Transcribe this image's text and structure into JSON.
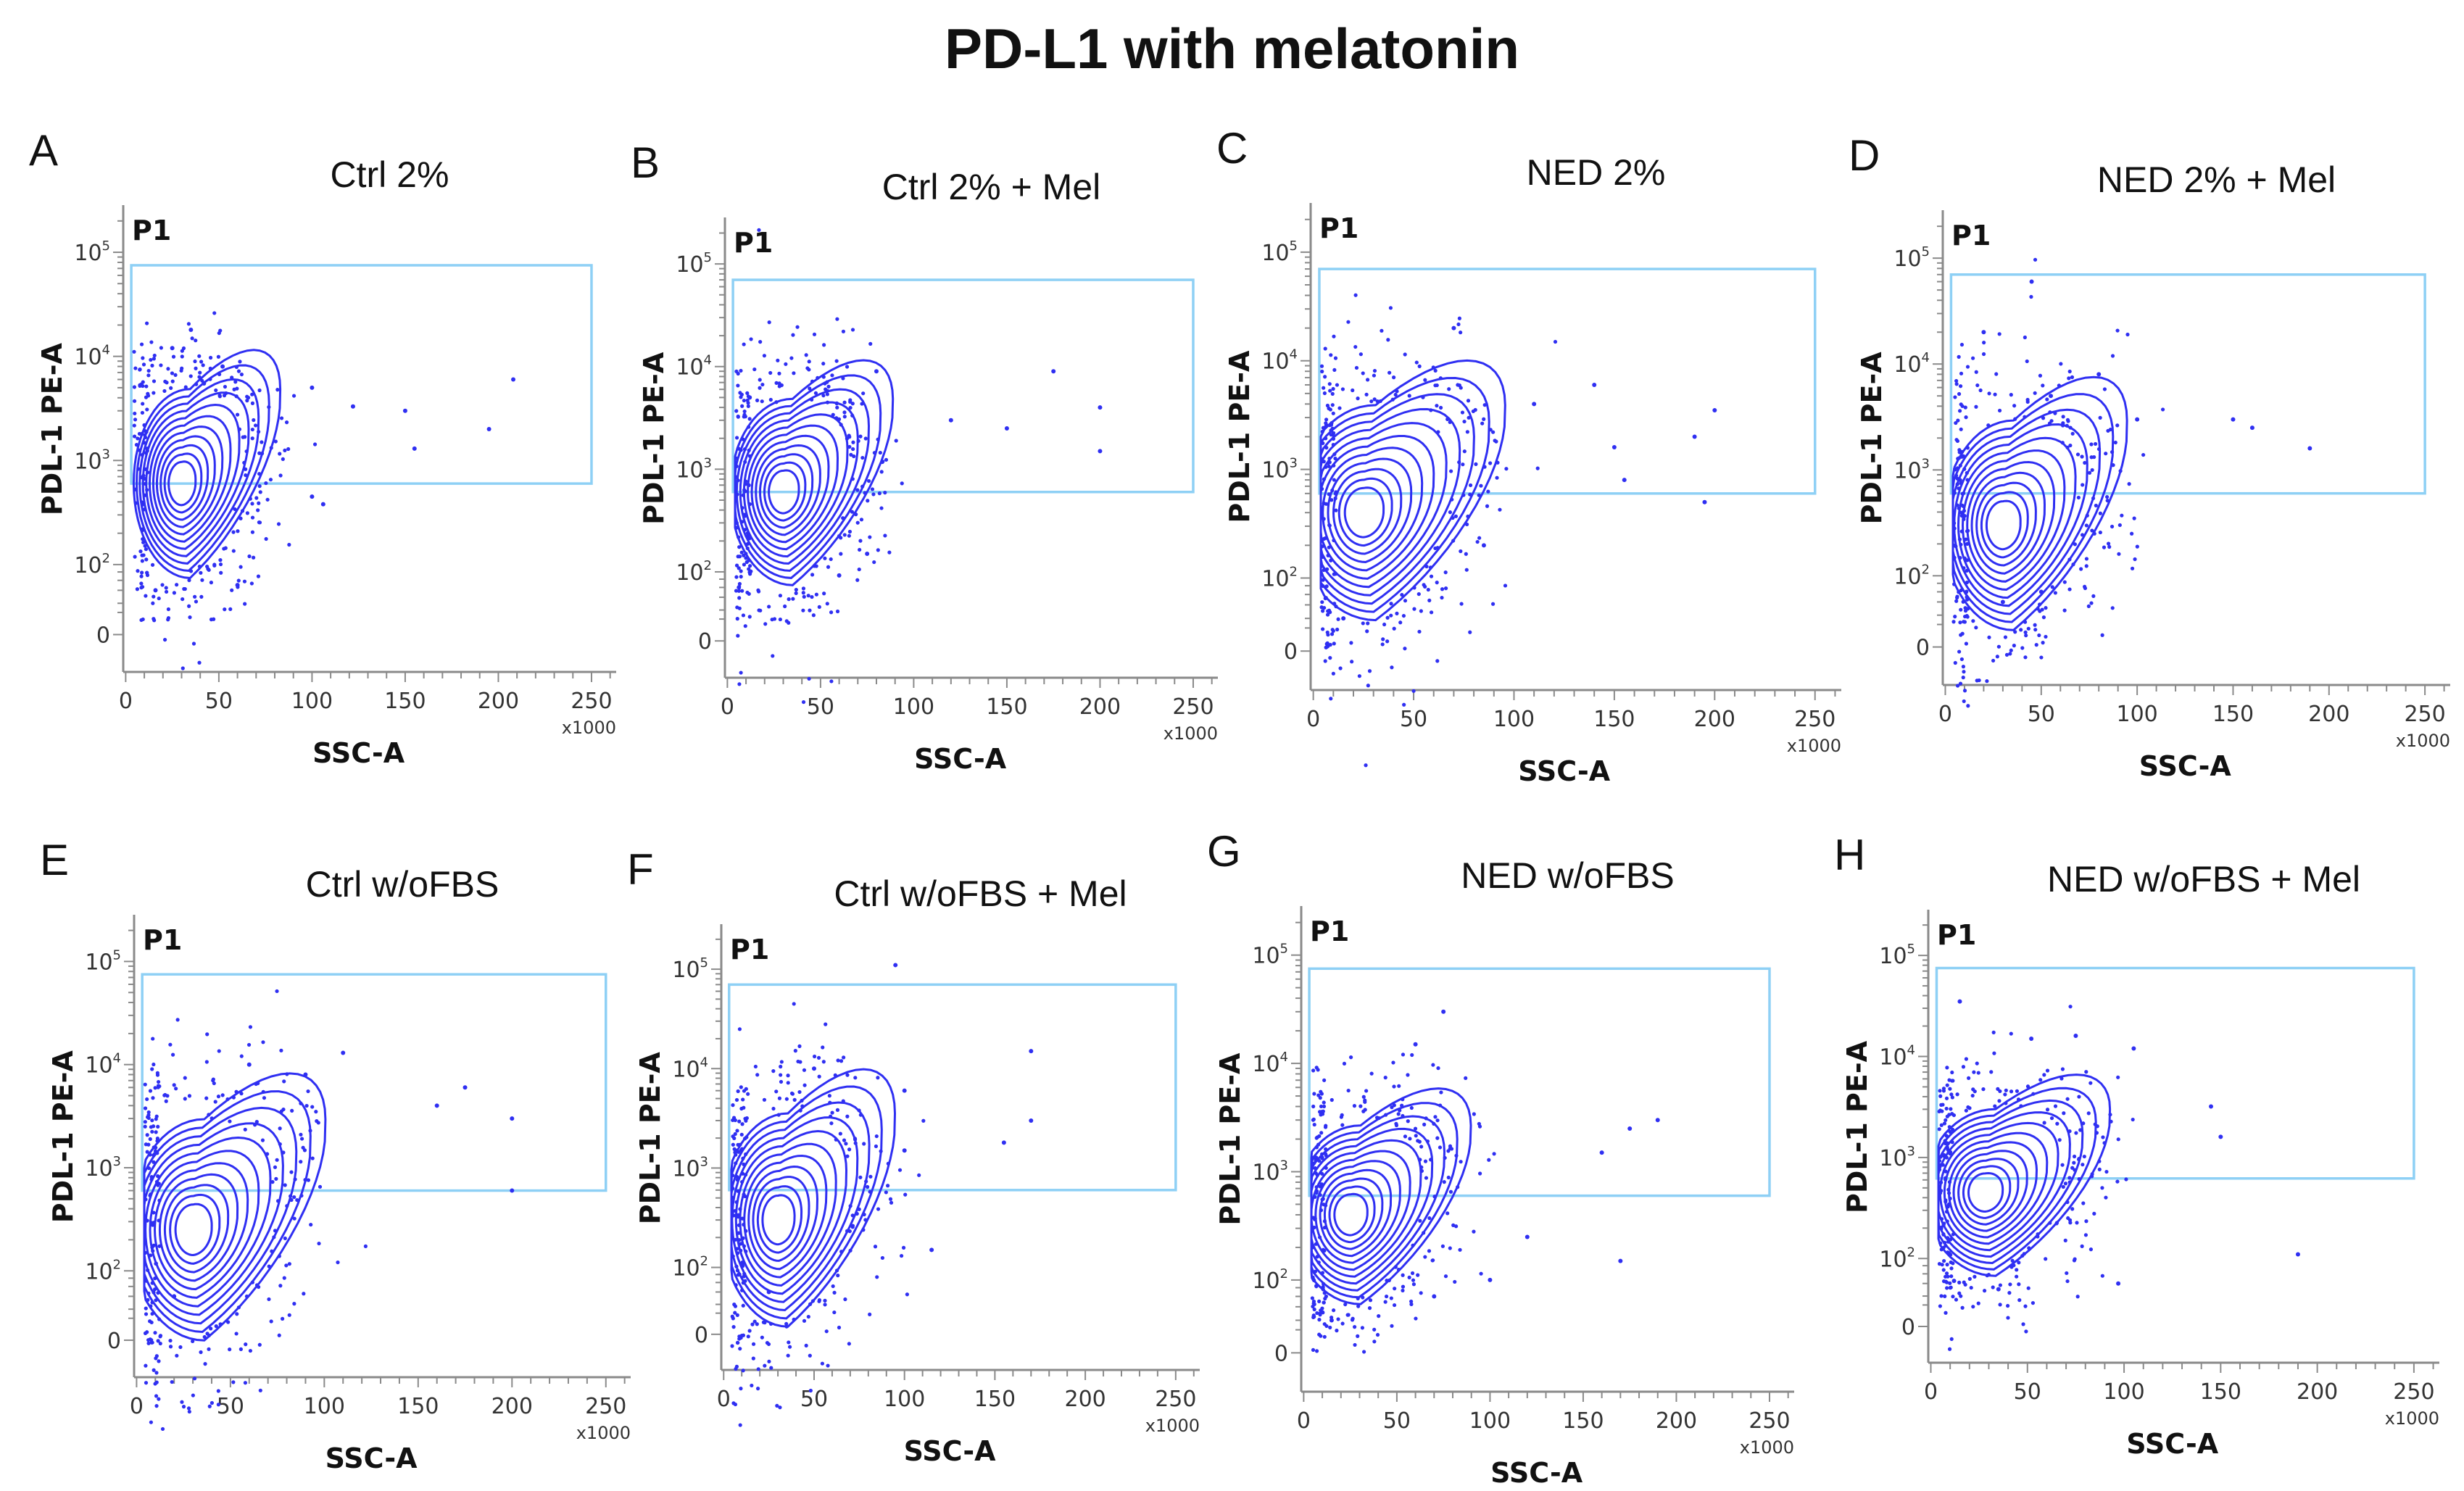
{
  "title": "PD-L1 with melatonin",
  "colors": {
    "contour": "#2f2ff2",
    "gate": "#8ed0f5",
    "axis": "#8a8a8a"
  },
  "chart_data": {
    "type": "contour-scatter",
    "shared_axes": {
      "xlabel": "SSC-A",
      "ylabel": "PDL-1 PE-A",
      "x_multiplier": "x1000",
      "x_ticks": [
        "0",
        "50",
        "100",
        "150",
        "200",
        "250"
      ],
      "x_range": [
        0,
        262
      ],
      "y_scale": "biexponential",
      "y_ticks": [
        {
          "base": "0",
          "exp": ""
        },
        {
          "base": "10",
          "exp": "2"
        },
        {
          "base": "10",
          "exp": "3"
        },
        {
          "base": "10",
          "exp": "4"
        },
        {
          "base": "10",
          "exp": "5"
        }
      ],
      "y_range": [
        -50,
        290000
      ]
    },
    "panels": [
      {
        "letter": "A",
        "title": "Ctrl 2%",
        "gate": {
          "label": "P1",
          "x": [
            3,
            250
          ],
          "y": [
            600,
            75000
          ]
        },
        "population": {
          "center": [
            30,
            600
          ],
          "spread": [
            18,
            0.55
          ]
        },
        "outliers": [
          [
            35,
            18000
          ],
          [
            25,
            12000
          ],
          [
            52,
            8000
          ],
          [
            42,
            5500
          ],
          [
            100,
            5000
          ],
          [
            208,
            6000
          ],
          [
            195,
            2000
          ],
          [
            150,
            3000
          ],
          [
            155,
            1300
          ],
          [
            122,
            3300
          ],
          [
            100,
            450
          ],
          [
            106,
            380
          ],
          [
            60,
            50
          ],
          [
            16,
            40
          ]
        ]
      },
      {
        "letter": "B",
        "title": "Ctrl 2% + Mel",
        "gate": {
          "label": "P1",
          "x": [
            3,
            250
          ],
          "y": [
            600,
            70000
          ]
        },
        "population": {
          "center": [
            30,
            600
          ],
          "spread": [
            20,
            0.55
          ]
        },
        "outliers": [
          [
            175,
            9000
          ],
          [
            200,
            4000
          ],
          [
            200,
            1500
          ],
          [
            150,
            2500
          ],
          [
            120,
            3000
          ],
          [
            80,
            9000
          ],
          [
            12,
            5000
          ],
          [
            75,
            150
          ],
          [
            60,
            90
          ]
        ]
      },
      {
        "letter": "C",
        "title": "NED 2%",
        "gate": {
          "label": "P1",
          "x": [
            3,
            250
          ],
          "y": [
            600,
            70000
          ]
        },
        "population": {
          "center": [
            25,
            400
          ],
          "spread": [
            24,
            0.6
          ]
        },
        "outliers": [
          [
            70,
            20000
          ],
          [
            200,
            3500
          ],
          [
            190,
            2000
          ],
          [
            150,
            1600
          ],
          [
            195,
            500
          ],
          [
            155,
            800
          ],
          [
            110,
            4000
          ],
          [
            140,
            6000
          ],
          [
            15,
            20
          ],
          [
            85,
            200
          ]
        ]
      },
      {
        "letter": "D",
        "title": "NED 2% + Mel",
        "gate": {
          "label": "P1",
          "x": [
            3,
            250
          ],
          "y": [
            600,
            70000
          ]
        },
        "population": {
          "center": [
            30,
            300
          ],
          "spread": [
            22,
            0.6
          ]
        },
        "outliers": [
          [
            45,
            60000
          ],
          [
            20,
            20000
          ],
          [
            100,
            3000
          ],
          [
            190,
            1600
          ],
          [
            150,
            3000
          ],
          [
            160,
            2500
          ],
          [
            80,
            8000
          ],
          [
            55,
            5000
          ],
          [
            50,
            60
          ],
          [
            30,
            40
          ]
        ]
      },
      {
        "letter": "E",
        "title": "Ctrl w/oFBS",
        "gate": {
          "label": "P1",
          "x": [
            3,
            250
          ],
          "y": [
            600,
            75000
          ]
        },
        "population": {
          "center": [
            30,
            250
          ],
          "spread": [
            24,
            0.65
          ]
        },
        "outliers": [
          [
            175,
            6000
          ],
          [
            200,
            3000
          ],
          [
            200,
            600
          ],
          [
            110,
            13000
          ],
          [
            160,
            4000
          ],
          [
            60,
            10000
          ],
          [
            90,
            8000
          ],
          [
            20,
            40
          ]
        ]
      },
      {
        "letter": "F",
        "title": "Ctrl w/oFBS + Mel",
        "gate": {
          "label": "P1",
          "x": [
            3,
            250
          ],
          "y": [
            600,
            70000
          ]
        },
        "population": {
          "center": [
            30,
            300
          ],
          "spread": [
            22,
            0.65
          ]
        },
        "outliers": [
          [
            95,
            110000
          ],
          [
            170,
            15000
          ],
          [
            50,
            10000
          ],
          [
            100,
            6000
          ],
          [
            170,
            3000
          ],
          [
            155,
            1800
          ],
          [
            115,
            150
          ],
          [
            100,
            1500
          ],
          [
            25,
            40
          ]
        ]
      },
      {
        "letter": "G",
        "title": "NED w/oFBS",
        "gate": {
          "label": "P1",
          "x": [
            3,
            250
          ],
          "y": [
            600,
            75000
          ]
        },
        "population": {
          "center": [
            25,
            400
          ],
          "spread": [
            22,
            0.5
          ]
        },
        "outliers": [
          [
            75,
            30000
          ],
          [
            60,
            15000
          ],
          [
            190,
            3000
          ],
          [
            175,
            2500
          ],
          [
            160,
            1500
          ],
          [
            170,
            150
          ],
          [
            120,
            250
          ],
          [
            100,
            100
          ],
          [
            70,
            60
          ],
          [
            15,
            20
          ]
        ]
      },
      {
        "letter": "H",
        "title": "NED w/oFBS + Mel",
        "gate": {
          "label": "P1",
          "x": [
            3,
            250
          ],
          "y": [
            620,
            75000
          ]
        },
        "population": {
          "center": [
            28,
            450
          ],
          "spread": [
            22,
            0.5
          ]
        },
        "outliers": [
          [
            15,
            35000
          ],
          [
            52,
            15000
          ],
          [
            75,
            16000
          ],
          [
            105,
            12000
          ],
          [
            190,
            110
          ],
          [
            145,
            3200
          ],
          [
            150,
            1600
          ],
          [
            97,
            40
          ],
          [
            35,
            30
          ],
          [
            12,
            45
          ]
        ]
      }
    ]
  }
}
